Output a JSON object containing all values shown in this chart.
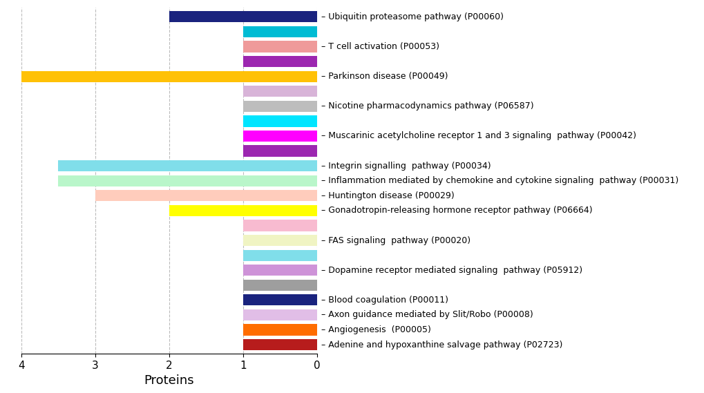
{
  "rows": [
    {
      "label": "Ubiquitin proteasome pathway (P00060)",
      "bars": [
        {
          "value": 2,
          "color": "#1a237e"
        }
      ],
      "label_row": 0
    },
    {
      "label": "",
      "bars": [
        {
          "value": 1,
          "color": "#00bcd4"
        }
      ],
      "label_row": null
    },
    {
      "label": "T cell activation (P00053)",
      "bars": [
        {
          "value": 1,
          "color": "#ef9a9a"
        }
      ],
      "label_row": 2
    },
    {
      "label": "",
      "bars": [
        {
          "value": 1,
          "color": "#9c27b0"
        }
      ],
      "label_row": null
    },
    {
      "label": "Parkinson disease (P00049)",
      "bars": [
        {
          "value": 4,
          "color": "#ffc107"
        }
      ],
      "label_row": 4
    },
    {
      "label": "",
      "bars": [
        {
          "value": 1,
          "color": "#d8b4d8"
        }
      ],
      "label_row": null
    },
    {
      "label": "Nicotine pharmacodynamics pathway (P06587)",
      "bars": [
        {
          "value": 1,
          "color": "#bdbdbd"
        }
      ],
      "label_row": 6
    },
    {
      "label": "",
      "bars": [
        {
          "value": 1,
          "color": "#00e5ff"
        }
      ],
      "label_row": null
    },
    {
      "label": "Muscarinic acetylcholine receptor 1 and 3 signaling  pathway (P00042)",
      "bars": [
        {
          "value": 1,
          "color": "#ff00ff"
        }
      ],
      "label_row": 8
    },
    {
      "label": "",
      "bars": [
        {
          "value": 1,
          "color": "#9c27b0"
        }
      ],
      "label_row": null
    },
    {
      "label": "Integrin signalling  pathway (P00034)",
      "bars": [
        {
          "value": 3.5,
          "color": "#80deea"
        }
      ],
      "label_row": 10
    },
    {
      "label": "Inflammation mediated by chemokine and cytokine signaling  pathway (P00031)",
      "bars": [
        {
          "value": 3.5,
          "color": "#b9f6ca"
        }
      ],
      "label_row": 11
    },
    {
      "label": "Huntington disease (P00029)",
      "bars": [
        {
          "value": 3,
          "color": "#ffccbc"
        }
      ],
      "label_row": 12
    },
    {
      "label": "Gonadotropin-releasing hormone receptor pathway (P06664)",
      "bars": [
        {
          "value": 2,
          "color": "#ffff00"
        }
      ],
      "label_row": 13
    },
    {
      "label": "",
      "bars": [
        {
          "value": 1,
          "color": "#f8bbd0"
        }
      ],
      "label_row": null
    },
    {
      "label": "FAS signaling  pathway (P00020)",
      "bars": [
        {
          "value": 1,
          "color": "#f0f4c3"
        }
      ],
      "label_row": 15
    },
    {
      "label": "",
      "bars": [
        {
          "value": 1,
          "color": "#80deea"
        }
      ],
      "label_row": null
    },
    {
      "label": "Dopamine receptor mediated signaling  pathway (P05912)",
      "bars": [
        {
          "value": 1,
          "color": "#ce93d8"
        }
      ],
      "label_row": 17
    },
    {
      "label": "",
      "bars": [
        {
          "value": 1,
          "color": "#9e9e9e"
        }
      ],
      "label_row": null
    },
    {
      "label": "Blood coagulation (P00011)",
      "bars": [
        {
          "value": 1,
          "color": "#1a237e"
        }
      ],
      "label_row": 19
    },
    {
      "label": "Axon guidance mediated by Slit/Robo (P00008)",
      "bars": [
        {
          "value": 1,
          "color": "#e1bee7"
        }
      ],
      "label_row": 20
    },
    {
      "label": "Angiogenesis  (P00005)",
      "bars": [
        {
          "value": 1,
          "color": "#ff6d00"
        }
      ],
      "label_row": 21
    },
    {
      "label": "Adenine and hypoxanthine salvage pathway (P02723)",
      "bars": [
        {
          "value": 1,
          "color": "#b71c1c"
        }
      ],
      "label_row": 22
    }
  ],
  "xlim_left": 4,
  "xlim_right": 0,
  "xticks": [
    4,
    3,
    2,
    1,
    0
  ],
  "xlabel": "Proteins",
  "bar_height": 0.75,
  "grid_color": "#bbbbbb",
  "bg_color": "#ffffff",
  "label_fontsize": 9,
  "tick_fontsize": 11,
  "xlabel_fontsize": 13
}
